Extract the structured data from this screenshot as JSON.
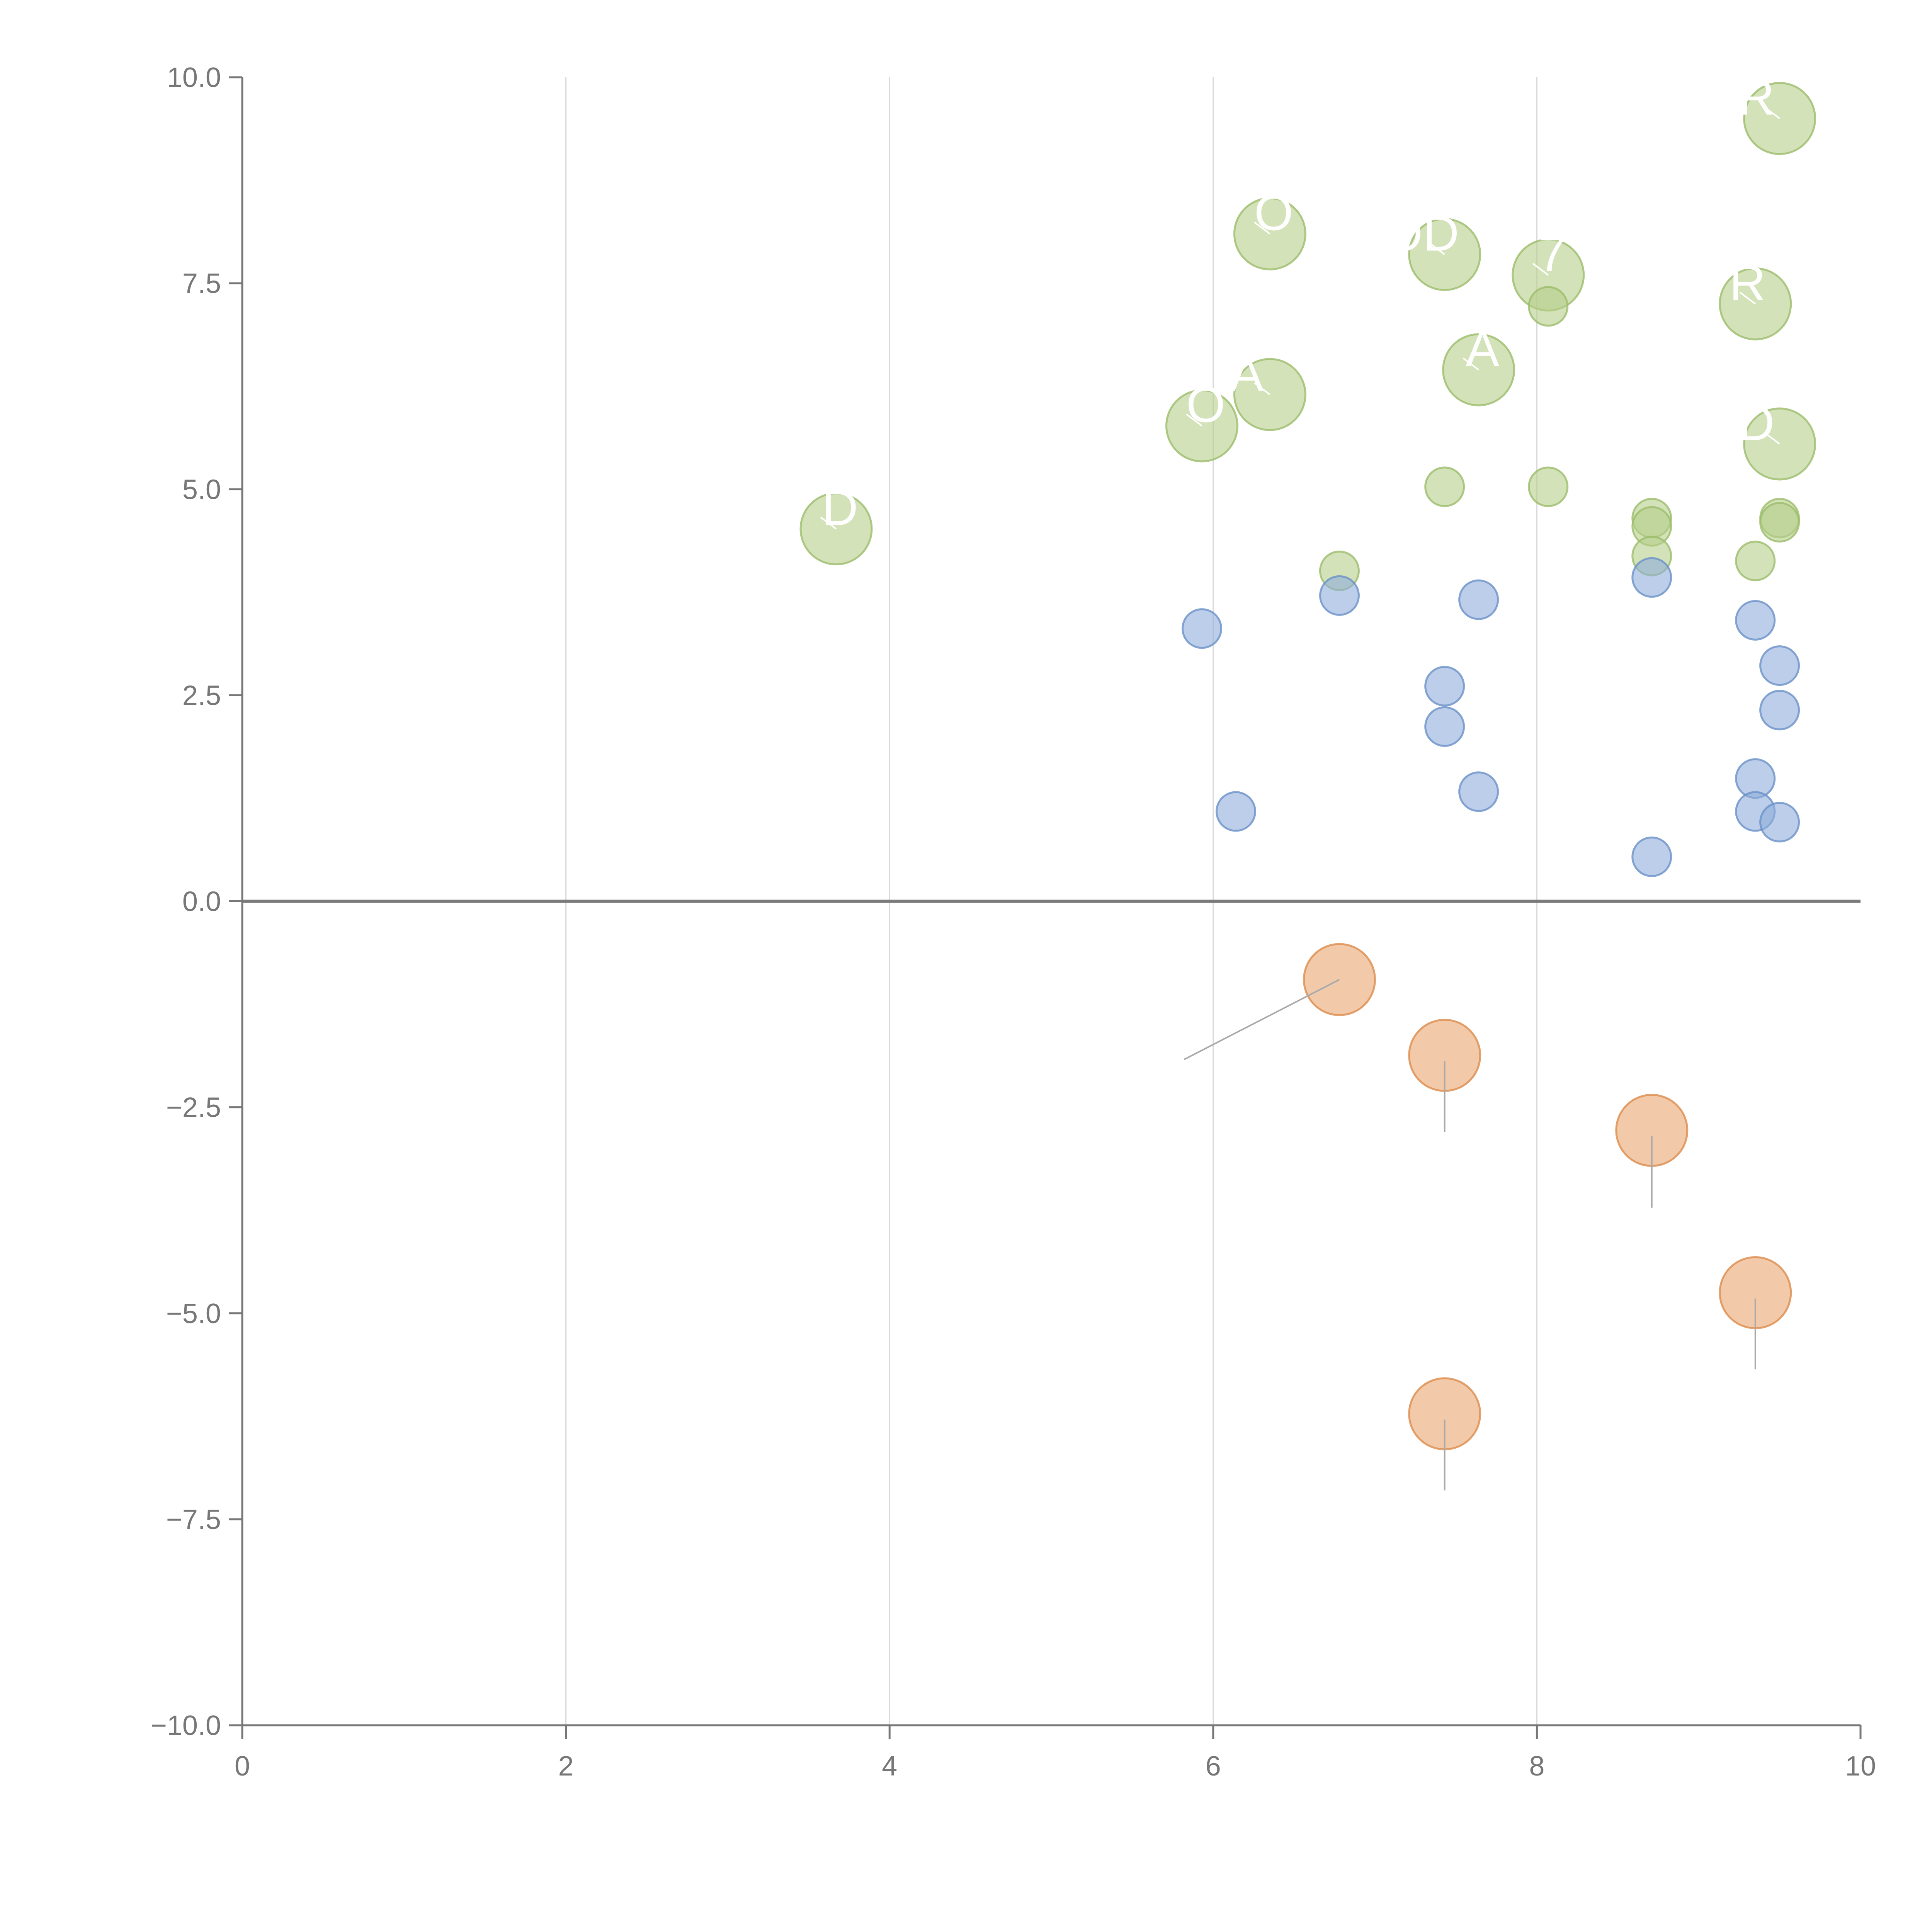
{
  "chart_data": {
    "type": "scatter",
    "title": "",
    "xlabel": "",
    "ylabel": "",
    "xlim": [
      0,
      10
    ],
    "ylim": [
      -10,
      10
    ],
    "x_ticks": [
      0,
      2,
      4,
      6,
      8,
      10
    ],
    "x_tick_labels": [
      "0",
      "2",
      "4",
      "6",
      "8",
      "10"
    ],
    "y_ticks": [
      10,
      7.5,
      5,
      2.5,
      0,
      -2.5,
      -5,
      -7.5,
      -10
    ],
    "y_tick_labels": [
      "10.0",
      "7.5",
      "5.0",
      "2.5",
      "0.0",
      "−2.5",
      "−5.0",
      "−7.5",
      "−10.0"
    ],
    "grid": "vertical",
    "zero_line": true,
    "colors": {
      "green": "#b5cf8b",
      "green_stroke": "#9cbd6b",
      "blue": "#8faedb",
      "blue_stroke": "#6a91c8",
      "orange": "#e9a56f",
      "orange_stroke": "#dc8c4c",
      "axis": "#777777",
      "grid": "#d9d9d9",
      "zero": "#7a7a7a",
      "leader": "#aaaaaa",
      "label": "#ffffff"
    },
    "series": [
      {
        "name": "green-large",
        "color": "#b5cf8b",
        "size": "large",
        "points": [
          {
            "x": 9.5,
            "y": 9.5,
            "label": "R"
          },
          {
            "x": 6.35,
            "y": 8.1,
            "label": "O"
          },
          {
            "x": 7.43,
            "y": 7.85,
            "label": "OD"
          },
          {
            "x": 8.07,
            "y": 7.6,
            "label": "7"
          },
          {
            "x": 9.35,
            "y": 7.25,
            "label": "TR"
          },
          {
            "x": 7.64,
            "y": 6.45,
            "label": "A"
          },
          {
            "x": 6.35,
            "y": 6.15,
            "label": "A"
          },
          {
            "x": 5.93,
            "y": 5.77,
            "label": "O"
          },
          {
            "x": 9.5,
            "y": 5.55,
            "label": "D"
          },
          {
            "x": 3.67,
            "y": 4.52,
            "label": "D"
          }
        ]
      },
      {
        "name": "green-small",
        "color": "#b5cf8b",
        "size": "small",
        "points": [
          {
            "x": 8.07,
            "y": 7.22
          },
          {
            "x": 7.43,
            "y": 5.03
          },
          {
            "x": 8.07,
            "y": 5.03
          },
          {
            "x": 8.71,
            "y": 4.65
          },
          {
            "x": 8.71,
            "y": 4.55
          },
          {
            "x": 9.5,
            "y": 4.65
          },
          {
            "x": 9.5,
            "y": 4.6
          },
          {
            "x": 9.35,
            "y": 4.13
          },
          {
            "x": 8.71,
            "y": 4.19
          },
          {
            "x": 6.78,
            "y": 4.01
          }
        ]
      },
      {
        "name": "blue",
        "color": "#8faedb",
        "size": "small",
        "points": [
          {
            "x": 8.71,
            "y": 3.93
          },
          {
            "x": 6.78,
            "y": 3.71
          },
          {
            "x": 7.64,
            "y": 3.66
          },
          {
            "x": 9.35,
            "y": 3.41
          },
          {
            "x": 5.93,
            "y": 3.31
          },
          {
            "x": 9.5,
            "y": 2.86
          },
          {
            "x": 7.43,
            "y": 2.61
          },
          {
            "x": 9.5,
            "y": 2.32
          },
          {
            "x": 7.43,
            "y": 2.12
          },
          {
            "x": 9.35,
            "y": 1.49
          },
          {
            "x": 7.64,
            "y": 1.33
          },
          {
            "x": 6.14,
            "y": 1.09
          },
          {
            "x": 9.35,
            "y": 1.09
          },
          {
            "x": 9.5,
            "y": 0.96
          },
          {
            "x": 8.71,
            "y": 0.54
          }
        ]
      },
      {
        "name": "orange",
        "color": "#e9a56f",
        "size": "large",
        "points": [
          {
            "x": 6.78,
            "y": -0.95,
            "leader_to": [
              5.82,
              -1.92
            ]
          },
          {
            "x": 7.43,
            "y": -1.87,
            "leader_to": [
              7.43,
              -2.8
            ]
          },
          {
            "x": 8.71,
            "y": -2.78,
            "leader_to": [
              8.71,
              -3.72
            ]
          },
          {
            "x": 9.35,
            "y": -4.75,
            "leader_to": [
              9.35,
              -5.68
            ]
          },
          {
            "x": 7.43,
            "y": -6.22,
            "leader_to": [
              7.43,
              -7.15
            ]
          }
        ]
      }
    ]
  }
}
